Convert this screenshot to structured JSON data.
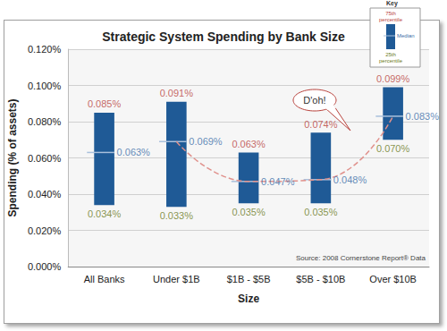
{
  "chart_data": {
    "type": "range_bar",
    "title": "Strategic System Spending by Bank Size",
    "x_label": "Size",
    "y_label": "Spending (% of assets)",
    "categories": [
      "All Banks",
      "Under $1B",
      "$1B - $5B",
      "$5B - $10B",
      "Over $10B"
    ],
    "color": "#1f5a96",
    "series": [
      {
        "name": "75th percentile",
        "color": "#b8423c",
        "values": [
          0.085,
          0.091,
          0.063,
          0.074,
          0.099
        ],
        "value_labels": [
          "0.085%",
          "0.091%",
          "0.063%",
          "0.074%",
          "0.099%"
        ]
      },
      {
        "name": "Median",
        "color": "#3b6ea8",
        "values": [
          0.063,
          0.069,
          0.047,
          0.048,
          0.083
        ],
        "value_labels": [
          "0.063%",
          "0.069%",
          "0.047%",
          "0.048%",
          "0.083%"
        ]
      },
      {
        "name": "25th percentile",
        "color": "#6b7a22",
        "values": [
          0.034,
          0.033,
          0.035,
          0.035,
          0.07
        ],
        "value_labels": [
          "0.034%",
          "0.033%",
          "0.035%",
          "0.035%",
          "0.070%"
        ]
      },
      {
        "type": "line",
        "color": "#e0918c",
        "line_style": "dashed",
        "marker": "none",
        "values": [
          null,
          0.069,
          0.047,
          0.048,
          0.083
        ]
      }
    ],
    "ylim": [
      0,
      0.12
    ],
    "yticks": [
      {
        "value": 0,
        "label": "0.000%"
      },
      {
        "value": 0.02,
        "label": "0.020%"
      },
      {
        "value": 0.04,
        "label": "0.040%"
      },
      {
        "value": 0.06,
        "label": "0.060%"
      },
      {
        "value": 0.08,
        "label": "0.080%"
      },
      {
        "value": 0.1,
        "label": "0.100%"
      },
      {
        "value": 0.12,
        "label": "0.120%"
      }
    ],
    "grid": true,
    "data_labels": true,
    "legend": "top right",
    "legend_title": "Key",
    "annotations": [
      "D'oh!"
    ],
    "source": "Source: 2008 Cornerstone Report® Data"
  }
}
